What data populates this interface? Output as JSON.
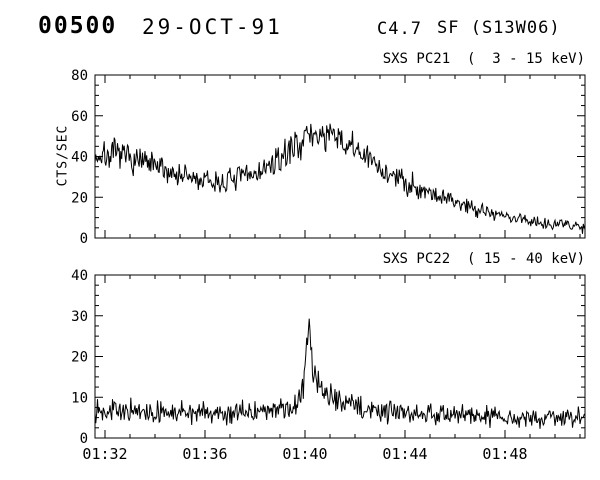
{
  "header": {
    "event_number": "00500",
    "date": "29-OCT-91",
    "goes_class": "C4.7",
    "flare_info": "SF (S13W06)"
  },
  "chart_data": [
    {
      "type": "line",
      "title": "SXS PC21  (  3 - 15 keV)",
      "ylabel": "CTS/SEC",
      "ylim": [
        0,
        80
      ],
      "yticks": [
        0,
        20,
        40,
        60,
        80
      ],
      "y_minor_step": 5,
      "x_range_minutes": [
        91.6,
        111.2
      ],
      "xticks": [
        {
          "t": 92,
          "label": "01:32"
        },
        {
          "t": 96,
          "label": "01:36"
        },
        {
          "t": 100,
          "label": "01:40"
        },
        {
          "t": 104,
          "label": "01:44"
        },
        {
          "t": 108,
          "label": "01:48"
        }
      ],
      "x_minor_step": 1,
      "show_x_labels": false,
      "grid": false,
      "legend": false,
      "line_color": "#000000",
      "sample_step_seconds": 2,
      "noise_scale": 1.1,
      "seed": 7,
      "envelope": [
        [
          91.6,
          40
        ],
        [
          92.5,
          41
        ],
        [
          93.3,
          38
        ],
        [
          94.2,
          34
        ],
        [
          95.0,
          31
        ],
        [
          95.8,
          28
        ],
        [
          96.6,
          27
        ],
        [
          97.5,
          30
        ],
        [
          98.3,
          33
        ],
        [
          99.0,
          38
        ],
        [
          99.5,
          45
        ],
        [
          100.0,
          49
        ],
        [
          100.5,
          51
        ],
        [
          101.0,
          50
        ],
        [
          101.6,
          46
        ],
        [
          102.2,
          42
        ],
        [
          103.0,
          34
        ],
        [
          103.7,
          29
        ],
        [
          104.5,
          25
        ],
        [
          105.3,
          21
        ],
        [
          106.2,
          17
        ],
        [
          107.2,
          13.5
        ],
        [
          108.0,
          10.5
        ],
        [
          109.0,
          8.5
        ],
        [
          110.0,
          7
        ],
        [
          111.2,
          5.5
        ]
      ]
    },
    {
      "type": "line",
      "title": "SXS PC22  ( 15 - 40 keV)",
      "ylabel": "",
      "ylim": [
        0,
        40
      ],
      "yticks": [
        0,
        10,
        20,
        30,
        40
      ],
      "y_minor_step": 2.5,
      "x_range_minutes": [
        91.6,
        111.2
      ],
      "xticks": [
        {
          "t": 92,
          "label": "01:32"
        },
        {
          "t": 96,
          "label": "01:36"
        },
        {
          "t": 100,
          "label": "01:40"
        },
        {
          "t": 104,
          "label": "01:44"
        },
        {
          "t": 108,
          "label": "01:48"
        }
      ],
      "x_minor_step": 1,
      "show_x_labels": true,
      "grid": false,
      "legend": false,
      "line_color": "#000000",
      "sample_step_seconds": 2,
      "noise_scale": 1.0,
      "seed": 13,
      "envelope": [
        [
          91.6,
          7.5
        ],
        [
          92.8,
          6.5
        ],
        [
          94.0,
          6
        ],
        [
          95.2,
          6.5
        ],
        [
          96.4,
          6
        ],
        [
          97.6,
          6.5
        ],
        [
          98.6,
          6.5
        ],
        [
          99.3,
          7
        ],
        [
          99.7,
          8.5
        ],
        [
          99.95,
          12
        ],
        [
          100.08,
          24
        ],
        [
          100.17,
          29
        ],
        [
          100.3,
          17
        ],
        [
          100.5,
          13.5
        ],
        [
          100.8,
          11
        ],
        [
          101.3,
          9.5
        ],
        [
          101.9,
          8
        ],
        [
          102.6,
          7
        ],
        [
          103.6,
          6.5
        ],
        [
          105.0,
          6
        ],
        [
          107.0,
          5.5
        ],
        [
          109.0,
          5
        ],
        [
          111.2,
          5
        ]
      ]
    }
  ]
}
